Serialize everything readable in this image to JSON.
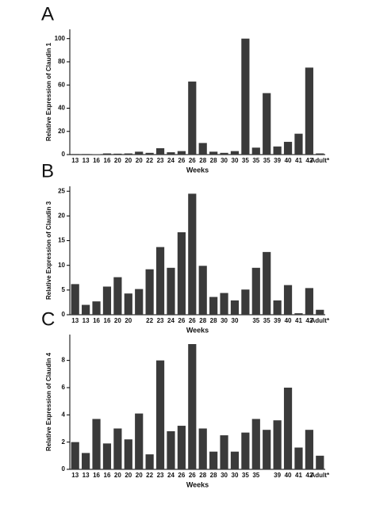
{
  "chart_data": [
    {
      "type": "bar",
      "label": "A",
      "x_label": "Weeks",
      "y_label": "Relative Expression of Claudin 1",
      "color": "#3a3a3a",
      "categories": [
        "13",
        "13",
        "16",
        "16",
        "20",
        "20",
        "20",
        "22",
        "23",
        "24",
        "26",
        "26",
        "28",
        "28",
        "30",
        "30",
        "35",
        "35",
        "35",
        "39",
        "40",
        "41",
        "42",
        "Adult*"
      ],
      "values": [
        0.5,
        0.5,
        0.3,
        1,
        0.8,
        1,
        2.5,
        1.5,
        5.5,
        2,
        3,
        63,
        10,
        2.5,
        1.5,
        3,
        100,
        6,
        53,
        7,
        11,
        18,
        75,
        1
      ],
      "ylim": [
        0,
        108
      ],
      "yticks": [
        0,
        20,
        40,
        60,
        80,
        100
      ]
    },
    {
      "type": "bar",
      "label": "B",
      "x_label": "Weeks",
      "y_label": "Relative Expression of Claudin 3",
      "color": "#3a3a3a",
      "categories": [
        "13",
        "13",
        "16",
        "16",
        "20",
        "20",
        null,
        "22",
        "23",
        "24",
        "26",
        "26",
        "28",
        "28",
        "30",
        "30",
        null,
        "35",
        "35",
        "39",
        "40",
        "41",
        "42",
        "Adult*"
      ],
      "values": [
        6.2,
        2.0,
        2.7,
        5.7,
        7.6,
        4.3,
        5.2,
        9.2,
        13.7,
        9.5,
        16.7,
        24.5,
        9.9,
        3.6,
        4.4,
        2.9,
        5.1,
        9.5,
        12.7,
        2.9,
        6.0,
        0.3,
        5.4,
        1.0
      ],
      "ylim": [
        0,
        26
      ],
      "yticks": [
        0,
        5,
        10,
        15,
        20,
        25
      ]
    },
    {
      "type": "bar",
      "label": "C",
      "x_label": "Weeks",
      "y_label": "Relative Expression of Claudin 4",
      "color": "#3a3a3a",
      "categories": [
        "13",
        "13",
        "16",
        "16",
        "20",
        "20",
        "20",
        "22",
        "23",
        "24",
        "26",
        "26",
        "28",
        "28",
        "30",
        "30",
        "35",
        "35",
        null,
        "39",
        "40",
        "41",
        "42",
        "Adult*"
      ],
      "values": [
        2.0,
        1.2,
        3.7,
        1.9,
        3.0,
        2.2,
        4.1,
        1.1,
        8.0,
        2.8,
        3.2,
        9.2,
        3.0,
        1.3,
        2.5,
        1.3,
        2.7,
        3.7,
        2.9,
        3.6,
        6.0,
        1.6,
        2.9,
        1.0
      ],
      "ylim": [
        0,
        9.9
      ],
      "yticks": [
        0,
        2,
        4,
        6,
        8
      ]
    }
  ]
}
